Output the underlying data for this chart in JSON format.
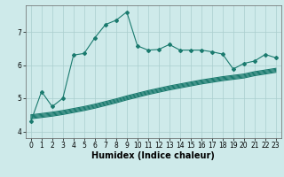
{
  "title": "",
  "xlabel": "Humidex (Indice chaleur)",
  "ylabel": "",
  "bg_color": "#ceeaea",
  "grid_color": "#aacece",
  "line_color": "#1a7a6e",
  "xlim": [
    -0.5,
    23.5
  ],
  "ylim": [
    3.8,
    7.8
  ],
  "xticks": [
    0,
    1,
    2,
    3,
    4,
    5,
    6,
    7,
    8,
    9,
    10,
    11,
    12,
    13,
    14,
    15,
    16,
    17,
    18,
    19,
    20,
    21,
    22,
    23
  ],
  "yticks": [
    4,
    5,
    6,
    7
  ],
  "main_line_x": [
    0,
    1,
    2,
    3,
    4,
    5,
    6,
    7,
    8,
    9,
    10,
    11,
    12,
    13,
    14,
    15,
    16,
    17,
    18,
    19,
    20,
    21,
    22,
    23
  ],
  "main_line_y": [
    4.3,
    5.2,
    4.75,
    5.0,
    6.3,
    6.35,
    6.82,
    7.22,
    7.35,
    7.6,
    6.58,
    6.45,
    6.47,
    6.62,
    6.45,
    6.45,
    6.45,
    6.4,
    6.33,
    5.88,
    6.05,
    6.12,
    6.32,
    6.22
  ],
  "band_lines": [
    [
      4.38,
      4.42,
      4.46,
      4.51,
      4.57,
      4.63,
      4.7,
      4.78,
      4.86,
      4.95,
      5.03,
      5.11,
      5.18,
      5.25,
      5.31,
      5.37,
      5.43,
      5.48,
      5.53,
      5.57,
      5.61,
      5.68,
      5.73,
      5.78
    ],
    [
      4.41,
      4.45,
      4.49,
      4.54,
      4.6,
      4.66,
      4.73,
      4.81,
      4.89,
      4.98,
      5.06,
      5.14,
      5.21,
      5.28,
      5.34,
      5.4,
      5.46,
      5.51,
      5.56,
      5.6,
      5.64,
      5.71,
      5.76,
      5.81
    ],
    [
      4.44,
      4.48,
      4.52,
      4.57,
      4.63,
      4.69,
      4.76,
      4.84,
      4.92,
      5.01,
      5.09,
      5.17,
      5.24,
      5.31,
      5.37,
      5.43,
      5.49,
      5.54,
      5.59,
      5.63,
      5.67,
      5.74,
      5.79,
      5.84
    ],
    [
      4.47,
      4.51,
      4.55,
      4.6,
      4.66,
      4.72,
      4.79,
      4.87,
      4.95,
      5.04,
      5.12,
      5.2,
      5.27,
      5.34,
      5.4,
      5.46,
      5.52,
      5.57,
      5.62,
      5.66,
      5.7,
      5.77,
      5.82,
      5.87
    ],
    [
      4.5,
      4.54,
      4.58,
      4.63,
      4.69,
      4.75,
      4.82,
      4.9,
      4.98,
      5.07,
      5.15,
      5.23,
      5.3,
      5.37,
      5.43,
      5.49,
      5.55,
      5.6,
      5.65,
      5.69,
      5.73,
      5.8,
      5.85,
      5.9
    ]
  ],
  "xlabel_fontsize": 7,
  "tick_fontsize": 5.5,
  "marker": "D",
  "marker_size": 2.0,
  "line_width": 0.8
}
